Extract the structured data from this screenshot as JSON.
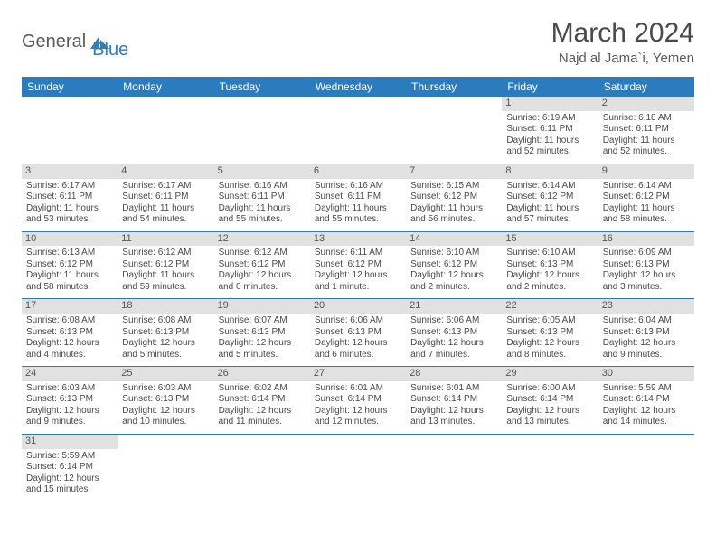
{
  "logo": {
    "part1": "General",
    "part2": "Blue"
  },
  "title": "March 2024",
  "location": "Najd al Jama`i, Yemen",
  "colors": {
    "header_bg": "#2b7bbf",
    "header_text": "#ffffff",
    "daynum_bg": "#e1e1e1",
    "border": "#2b7bbf",
    "logo_gray": "#5a5a5a",
    "logo_blue": "#2d7dc0"
  },
  "weekdays": [
    "Sunday",
    "Monday",
    "Tuesday",
    "Wednesday",
    "Thursday",
    "Friday",
    "Saturday"
  ],
  "weeks": [
    [
      null,
      null,
      null,
      null,
      null,
      {
        "n": "1",
        "sr": "Sunrise: 6:19 AM",
        "ss": "Sunset: 6:11 PM",
        "dl1": "Daylight: 11 hours",
        "dl2": "and 52 minutes."
      },
      {
        "n": "2",
        "sr": "Sunrise: 6:18 AM",
        "ss": "Sunset: 6:11 PM",
        "dl1": "Daylight: 11 hours",
        "dl2": "and 52 minutes."
      }
    ],
    [
      {
        "n": "3",
        "sr": "Sunrise: 6:17 AM",
        "ss": "Sunset: 6:11 PM",
        "dl1": "Daylight: 11 hours",
        "dl2": "and 53 minutes."
      },
      {
        "n": "4",
        "sr": "Sunrise: 6:17 AM",
        "ss": "Sunset: 6:11 PM",
        "dl1": "Daylight: 11 hours",
        "dl2": "and 54 minutes."
      },
      {
        "n": "5",
        "sr": "Sunrise: 6:16 AM",
        "ss": "Sunset: 6:11 PM",
        "dl1": "Daylight: 11 hours",
        "dl2": "and 55 minutes."
      },
      {
        "n": "6",
        "sr": "Sunrise: 6:16 AM",
        "ss": "Sunset: 6:11 PM",
        "dl1": "Daylight: 11 hours",
        "dl2": "and 55 minutes."
      },
      {
        "n": "7",
        "sr": "Sunrise: 6:15 AM",
        "ss": "Sunset: 6:12 PM",
        "dl1": "Daylight: 11 hours",
        "dl2": "and 56 minutes."
      },
      {
        "n": "8",
        "sr": "Sunrise: 6:14 AM",
        "ss": "Sunset: 6:12 PM",
        "dl1": "Daylight: 11 hours",
        "dl2": "and 57 minutes."
      },
      {
        "n": "9",
        "sr": "Sunrise: 6:14 AM",
        "ss": "Sunset: 6:12 PM",
        "dl1": "Daylight: 11 hours",
        "dl2": "and 58 minutes."
      }
    ],
    [
      {
        "n": "10",
        "sr": "Sunrise: 6:13 AM",
        "ss": "Sunset: 6:12 PM",
        "dl1": "Daylight: 11 hours",
        "dl2": "and 58 minutes."
      },
      {
        "n": "11",
        "sr": "Sunrise: 6:12 AM",
        "ss": "Sunset: 6:12 PM",
        "dl1": "Daylight: 11 hours",
        "dl2": "and 59 minutes."
      },
      {
        "n": "12",
        "sr": "Sunrise: 6:12 AM",
        "ss": "Sunset: 6:12 PM",
        "dl1": "Daylight: 12 hours",
        "dl2": "and 0 minutes."
      },
      {
        "n": "13",
        "sr": "Sunrise: 6:11 AM",
        "ss": "Sunset: 6:12 PM",
        "dl1": "Daylight: 12 hours",
        "dl2": "and 1 minute."
      },
      {
        "n": "14",
        "sr": "Sunrise: 6:10 AM",
        "ss": "Sunset: 6:12 PM",
        "dl1": "Daylight: 12 hours",
        "dl2": "and 2 minutes."
      },
      {
        "n": "15",
        "sr": "Sunrise: 6:10 AM",
        "ss": "Sunset: 6:13 PM",
        "dl1": "Daylight: 12 hours",
        "dl2": "and 2 minutes."
      },
      {
        "n": "16",
        "sr": "Sunrise: 6:09 AM",
        "ss": "Sunset: 6:13 PM",
        "dl1": "Daylight: 12 hours",
        "dl2": "and 3 minutes."
      }
    ],
    [
      {
        "n": "17",
        "sr": "Sunrise: 6:08 AM",
        "ss": "Sunset: 6:13 PM",
        "dl1": "Daylight: 12 hours",
        "dl2": "and 4 minutes."
      },
      {
        "n": "18",
        "sr": "Sunrise: 6:08 AM",
        "ss": "Sunset: 6:13 PM",
        "dl1": "Daylight: 12 hours",
        "dl2": "and 5 minutes."
      },
      {
        "n": "19",
        "sr": "Sunrise: 6:07 AM",
        "ss": "Sunset: 6:13 PM",
        "dl1": "Daylight: 12 hours",
        "dl2": "and 5 minutes."
      },
      {
        "n": "20",
        "sr": "Sunrise: 6:06 AM",
        "ss": "Sunset: 6:13 PM",
        "dl1": "Daylight: 12 hours",
        "dl2": "and 6 minutes."
      },
      {
        "n": "21",
        "sr": "Sunrise: 6:06 AM",
        "ss": "Sunset: 6:13 PM",
        "dl1": "Daylight: 12 hours",
        "dl2": "and 7 minutes."
      },
      {
        "n": "22",
        "sr": "Sunrise: 6:05 AM",
        "ss": "Sunset: 6:13 PM",
        "dl1": "Daylight: 12 hours",
        "dl2": "and 8 minutes."
      },
      {
        "n": "23",
        "sr": "Sunrise: 6:04 AM",
        "ss": "Sunset: 6:13 PM",
        "dl1": "Daylight: 12 hours",
        "dl2": "and 9 minutes."
      }
    ],
    [
      {
        "n": "24",
        "sr": "Sunrise: 6:03 AM",
        "ss": "Sunset: 6:13 PM",
        "dl1": "Daylight: 12 hours",
        "dl2": "and 9 minutes."
      },
      {
        "n": "25",
        "sr": "Sunrise: 6:03 AM",
        "ss": "Sunset: 6:13 PM",
        "dl1": "Daylight: 12 hours",
        "dl2": "and 10 minutes."
      },
      {
        "n": "26",
        "sr": "Sunrise: 6:02 AM",
        "ss": "Sunset: 6:14 PM",
        "dl1": "Daylight: 12 hours",
        "dl2": "and 11 minutes."
      },
      {
        "n": "27",
        "sr": "Sunrise: 6:01 AM",
        "ss": "Sunset: 6:14 PM",
        "dl1": "Daylight: 12 hours",
        "dl2": "and 12 minutes."
      },
      {
        "n": "28",
        "sr": "Sunrise: 6:01 AM",
        "ss": "Sunset: 6:14 PM",
        "dl1": "Daylight: 12 hours",
        "dl2": "and 13 minutes."
      },
      {
        "n": "29",
        "sr": "Sunrise: 6:00 AM",
        "ss": "Sunset: 6:14 PM",
        "dl1": "Daylight: 12 hours",
        "dl2": "and 13 minutes."
      },
      {
        "n": "30",
        "sr": "Sunrise: 5:59 AM",
        "ss": "Sunset: 6:14 PM",
        "dl1": "Daylight: 12 hours",
        "dl2": "and 14 minutes."
      }
    ],
    [
      {
        "n": "31",
        "sr": "Sunrise: 5:59 AM",
        "ss": "Sunset: 6:14 PM",
        "dl1": "Daylight: 12 hours",
        "dl2": "and 15 minutes."
      },
      null,
      null,
      null,
      null,
      null,
      null
    ]
  ]
}
